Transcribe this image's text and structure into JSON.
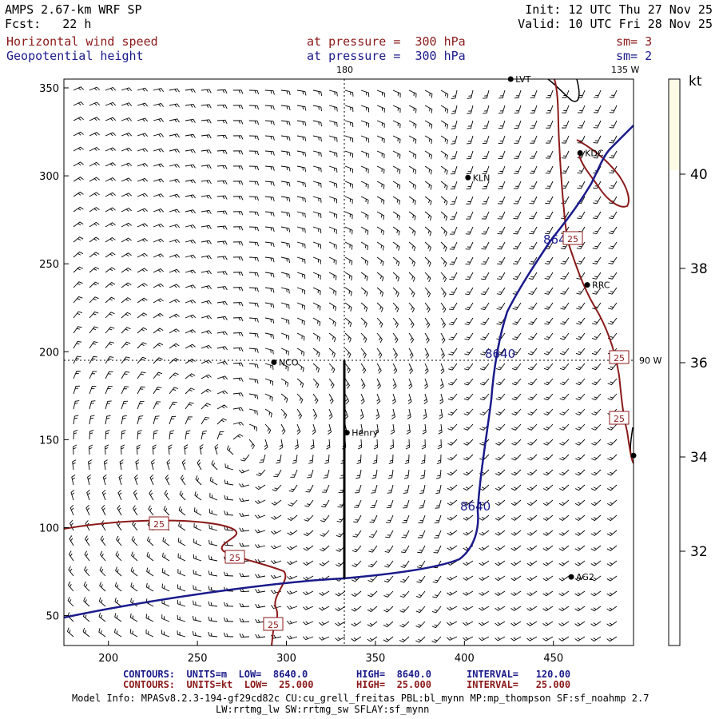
{
  "header": {
    "model": "AMPS 2.67-km WRF SP",
    "forecast": "Fcst:   22 h",
    "init": "Init: 12 UTC Thu 27 Nov 25",
    "valid": "Valid: 10 UTC Fri 28 Nov 25",
    "field1": "Horizontal wind speed",
    "field1_level": "at pressure =  300 hPa",
    "field1_sm": "sm= 3",
    "field2": "Geopotential height",
    "field2_level": "at pressure =  300 hPa",
    "field2_sm": "sm= 2"
  },
  "map": {
    "lon_labels": {
      "top_180": "180",
      "top_135w": "135 W",
      "right_90w": "90 W"
    },
    "x_ticks": [
      "200",
      "250",
      "300",
      "350",
      "400",
      "450"
    ],
    "y_ticks": [
      "350",
      "300",
      "250",
      "200",
      "150",
      "100",
      "50"
    ],
    "x_range": [
      175,
      495
    ],
    "y_range": [
      33,
      355
    ],
    "stations": [
      {
        "name": "LVT",
        "x": 426,
        "y": 355
      },
      {
        "name": "KDC",
        "x": 465,
        "y": 313
      },
      {
        "name": "KLN",
        "x": 402,
        "y": 299
      },
      {
        "name": "RRC",
        "x": 469,
        "y": 238
      },
      {
        "name": "NCO",
        "x": 293,
        "y": 194
      },
      {
        "name": "Henry",
        "x": 334,
        "y": 154
      },
      {
        "name": "AG2",
        "x": 460,
        "y": 72
      },
      {
        "name": "",
        "x": 495,
        "y": 141
      }
    ],
    "height_contour": {
      "label": "8640",
      "units": "m"
    },
    "speed_contour": {
      "label": "25",
      "units": "kt"
    },
    "colors": {
      "height": "#1a1a8b",
      "speed": "#8b1a1a",
      "barb": "#000000",
      "fill": "#fdfbe6"
    }
  },
  "colorbar": {
    "units": "kt",
    "labels": [
      "40",
      "38",
      "36",
      "34",
      "32"
    ]
  },
  "footer": {
    "line1_left": "CONTOURS:  UNITS=m  LOW=  8640.0",
    "line1_mid": "HIGH=  8640.0",
    "line1_right": "INTERVAL=   120.00",
    "line2_left": "CONTOURS:  UNITS=kt  LOW=  25.000",
    "line2_mid": "HIGH=  25.000",
    "line2_right": "INTERVAL=   25.000",
    "model_info": "Model Info: MPASv8.2.3-194-gf29cd82c CU:cu_grell_freitas PBL:bl_mynn MP:mp_thompson SF:sf_noahmp 2.7",
    "model_info2": "LW:rrtmg_lw SW:rrtmg_sw SFLAY:sf_mynn"
  }
}
